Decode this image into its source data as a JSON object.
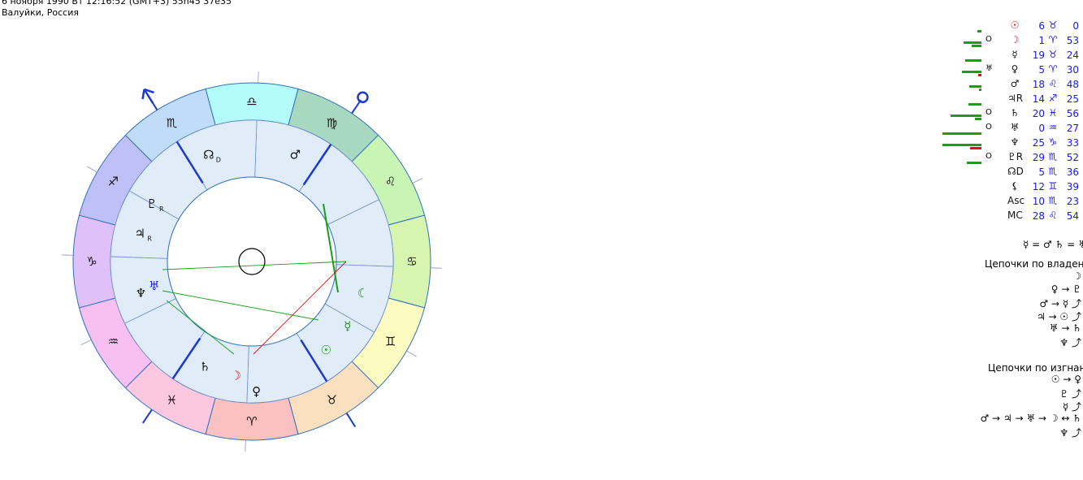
{
  "header": {
    "line1": "6 ноября 1990  Вт  12:16:52 (GMT+3) 55n45  37e35",
    "line2": "Валуйки, Россия"
  },
  "zodiac_ring": [
    {
      "sign": "♎",
      "color": "#b4fbfb"
    },
    {
      "sign": "♍",
      "color": "#a8d8c0"
    },
    {
      "sign": "♌",
      "color": "#c8f5b4"
    },
    {
      "sign": "♋",
      "color": "#d8f5b0"
    },
    {
      "sign": "♊",
      "color": "#fcfcc0"
    },
    {
      "sign": "♉",
      "color": "#fbe0c0"
    },
    {
      "sign": "♈",
      "color": "#fbc0c0"
    },
    {
      "sign": "♓",
      "color": "#fcc8e0"
    },
    {
      "sign": "♒",
      "color": "#f8c0f0"
    },
    {
      "sign": "♑",
      "color": "#e0c0f8"
    },
    {
      "sign": "♐",
      "color": "#c0c0f8"
    },
    {
      "sign": "♏",
      "color": "#c0dcf8"
    }
  ],
  "chart_planets": [
    {
      "sym": "☊",
      "sub": "D",
      "color": "#111"
    },
    {
      "sym": "♇",
      "sub": "R",
      "color": "#111"
    },
    {
      "sym": "♃",
      "sub": "R",
      "color": "#111"
    },
    {
      "sym": "♆",
      "sub": "",
      "color": "#111"
    },
    {
      "sym": "♅",
      "sub": "",
      "color": "#1a1ae0"
    },
    {
      "sym": "♄",
      "sub": "",
      "color": "#111"
    },
    {
      "sym": "☽",
      "sub": "",
      "color": "#e01010"
    },
    {
      "sym": "♀",
      "sub": "",
      "color": "#111"
    },
    {
      "sym": "☉",
      "sub": "",
      "color": "#16a016"
    },
    {
      "sym": "☿",
      "sub": "",
      "color": "#16a016"
    },
    {
      "sym": "☾",
      "sub": "",
      "color": "#16a016"
    },
    {
      "sym": "♂",
      "sub": "",
      "color": "#111"
    }
  ],
  "planet_table": [
    {
      "sym": "☉",
      "deg": "6",
      "sign": "♉",
      "min": "0",
      "mark": "",
      "red": true,
      "bars": [
        {
          "w": 5,
          "red": false
        }
      ]
    },
    {
      "sym": "☽",
      "deg": "1",
      "sign": "♈",
      "min": "53",
      "mark": "O",
      "red": true,
      "bars": [
        {
          "w": 12,
          "red": false
        },
        {
          "w": 22,
          "red": false
        }
      ]
    },
    {
      "sym": "☿",
      "deg": "19",
      "sign": "♉",
      "min": "24",
      "mark": "",
      "red": false,
      "bars": [
        {
          "w": 20,
          "red": false
        }
      ]
    },
    {
      "sym": "♀",
      "deg": "5",
      "sign": "♈",
      "min": "30",
      "mark": "♅",
      "red": false,
      "bars": [
        {
          "w": 4,
          "red": true
        },
        {
          "w": 24,
          "red": false
        }
      ]
    },
    {
      "sym": "♂",
      "deg": "18",
      "sign": "♌",
      "min": "48",
      "mark": "",
      "red": false,
      "bars": [
        {
          "w": 3,
          "red": false
        },
        {
          "w": 15,
          "red": false
        }
      ]
    },
    {
      "sym": "♃R",
      "deg": "14",
      "sign": "♐",
      "min": "25",
      "mark": "",
      "red": false,
      "bars": [
        {
          "w": 16,
          "red": false
        }
      ]
    },
    {
      "sym": "♄",
      "deg": "20",
      "sign": "♓",
      "min": "56",
      "mark": "O",
      "red": false,
      "bars": [
        {
          "w": 8,
          "red": false
        },
        {
          "w": 38,
          "red": false
        }
      ]
    },
    {
      "sym": "♅",
      "deg": "0",
      "sign": "♒",
      "min": "27",
      "mark": "O",
      "red": false,
      "bars": [
        {
          "w": 48,
          "red": false
        }
      ]
    },
    {
      "sym": "♆",
      "deg": "25",
      "sign": "♑",
      "min": "33",
      "mark": "",
      "red": false,
      "bars": [
        {
          "w": 14,
          "red": true
        },
        {
          "w": 48,
          "red": false
        }
      ]
    },
    {
      "sym": "♇R",
      "deg": "29",
      "sign": "♏",
      "min": "52",
      "mark": "O",
      "red": false,
      "bars": [
        {
          "w": 18,
          "red": false
        }
      ]
    },
    {
      "sym": "☊D",
      "deg": "5",
      "sign": "♏",
      "min": "36",
      "mark": "",
      "red": false,
      "bars": []
    },
    {
      "sym": "⚸",
      "deg": "12",
      "sign": "♊",
      "min": "39",
      "mark": "",
      "red": false,
      "bars": []
    },
    {
      "sym": "Asc",
      "deg": "10",
      "sign": "♏",
      "min": "23",
      "mark": "",
      "red": false,
      "bars": []
    },
    {
      "sym": "MC",
      "deg": "28",
      "sign": "♌",
      "min": "54",
      "mark": "",
      "red": false,
      "bars": []
    }
  ],
  "equality_line": "☿ = ♂ ♄ = ♅",
  "chains_rulership_title": "Цепочки по владени",
  "chains_rulership": [
    "☽",
    "♀ → ♇",
    "♂ → ☿ ⤴",
    "♃ → ☉ ⤴",
    "♅ → ♄",
    "♆ ⤴"
  ],
  "chains_exile_title": "Цепочки по изгнани",
  "chains_exile": [
    "☉ → ♀",
    "♇ ⤴",
    "☿ ⤴",
    "♂ → ♃ → ♅ → ☽ ↔ ♄",
    "♆ ⤴"
  ]
}
